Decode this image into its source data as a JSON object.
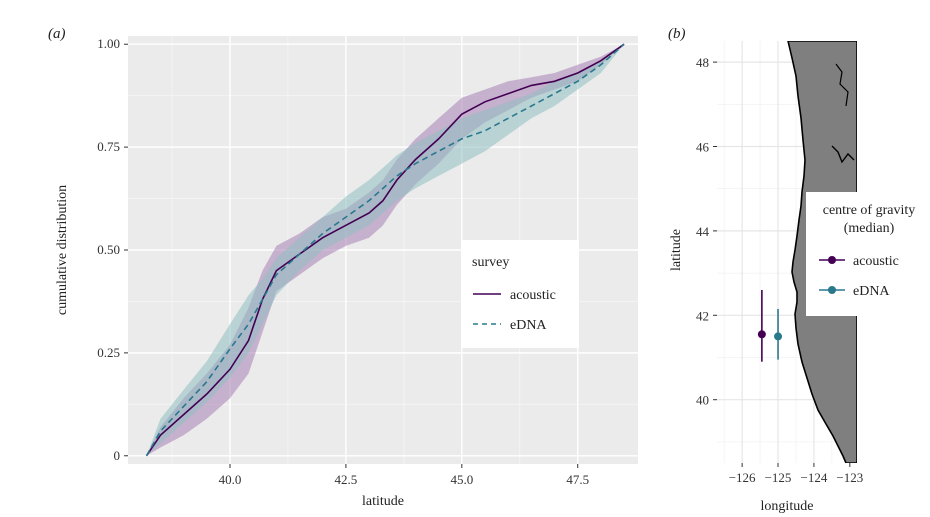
{
  "panel_a": {
    "label": "(a)",
    "xlabel": "latitude",
    "ylabel": "cumulative distribution",
    "xticks": [
      "40.0",
      "42.5",
      "45.0",
      "47.5"
    ],
    "yticks": [
      "0",
      "0.25",
      "0.50",
      "0.75",
      "1.00"
    ],
    "legend_title": "survey",
    "legend_items": [
      "acoustic",
      "eDNA"
    ]
  },
  "panel_b": {
    "label": "(b)",
    "xlabel": "longitude",
    "ylabel": "latitude",
    "xticks": [
      "−126",
      "−125",
      "−124",
      "−123"
    ],
    "yticks": [
      "40",
      "42",
      "44",
      "46",
      "48"
    ],
    "legend_title": "centre of gravity\n(median)",
    "legend_title_line1": "centre of gravity",
    "legend_title_line2": "(median)",
    "legend_items": [
      "acoustic",
      "eDNA"
    ]
  },
  "colors": {
    "acoustic": "#440154",
    "edna": "#2a788e",
    "acoustic_band": "#a67fb4",
    "edna_band": "#8fc0c3",
    "panel_bg": "#ebebeb",
    "land": "#7f7f7f"
  },
  "chart_data": [
    {
      "type": "line",
      "title": "",
      "xlabel": "latitude",
      "ylabel": "cumulative distribution",
      "xlim": [
        37.8,
        48.8
      ],
      "ylim": [
        -0.02,
        1.02
      ],
      "grid": true,
      "legend_placement": "center-right",
      "series": [
        {
          "name": "acoustic",
          "style": "solid",
          "x": [
            38.2,
            38.5,
            39.0,
            39.5,
            40.0,
            40.4,
            40.7,
            41.0,
            41.5,
            42.0,
            42.5,
            43.0,
            43.3,
            43.6,
            44.0,
            44.5,
            45.0,
            45.5,
            46.0,
            46.5,
            47.0,
            47.5,
            48.0,
            48.5
          ],
          "y": [
            0.0,
            0.05,
            0.1,
            0.15,
            0.21,
            0.28,
            0.38,
            0.45,
            0.49,
            0.53,
            0.56,
            0.59,
            0.62,
            0.67,
            0.72,
            0.77,
            0.83,
            0.86,
            0.88,
            0.9,
            0.91,
            0.93,
            0.96,
            1.0
          ],
          "lower": [
            0.0,
            0.02,
            0.05,
            0.09,
            0.14,
            0.2,
            0.3,
            0.4,
            0.44,
            0.48,
            0.51,
            0.53,
            0.56,
            0.61,
            0.66,
            0.71,
            0.77,
            0.81,
            0.84,
            0.87,
            0.89,
            0.91,
            0.95,
            1.0
          ],
          "upper": [
            0.0,
            0.07,
            0.14,
            0.2,
            0.27,
            0.36,
            0.45,
            0.51,
            0.54,
            0.58,
            0.6,
            0.64,
            0.67,
            0.72,
            0.77,
            0.82,
            0.87,
            0.89,
            0.91,
            0.92,
            0.93,
            0.95,
            0.97,
            1.0
          ]
        },
        {
          "name": "eDNA",
          "style": "dashed",
          "x": [
            38.2,
            38.5,
            39.0,
            39.5,
            40.0,
            40.4,
            40.7,
            41.0,
            41.5,
            42.0,
            42.5,
            43.0,
            43.3,
            43.6,
            44.0,
            44.5,
            45.0,
            45.5,
            46.0,
            46.5,
            47.0,
            47.5,
            48.0,
            48.5
          ],
          "y": [
            0.0,
            0.06,
            0.12,
            0.18,
            0.26,
            0.32,
            0.38,
            0.44,
            0.49,
            0.54,
            0.58,
            0.62,
            0.65,
            0.68,
            0.71,
            0.74,
            0.77,
            0.79,
            0.82,
            0.85,
            0.88,
            0.91,
            0.95,
            1.0
          ],
          "lower": [
            0.0,
            0.03,
            0.08,
            0.13,
            0.19,
            0.25,
            0.32,
            0.39,
            0.45,
            0.5,
            0.53,
            0.56,
            0.59,
            0.62,
            0.65,
            0.68,
            0.71,
            0.74,
            0.78,
            0.82,
            0.85,
            0.89,
            0.93,
            1.0
          ],
          "upper": [
            0.0,
            0.09,
            0.16,
            0.23,
            0.32,
            0.39,
            0.43,
            0.48,
            0.53,
            0.58,
            0.63,
            0.67,
            0.7,
            0.73,
            0.76,
            0.79,
            0.82,
            0.84,
            0.86,
            0.88,
            0.91,
            0.93,
            0.96,
            1.0
          ]
        }
      ]
    },
    {
      "type": "scatter",
      "title": "",
      "xlabel": "longitude",
      "ylabel": "latitude",
      "xlim": [
        -126.7,
        -122.8
      ],
      "ylim": [
        38.5,
        48.5
      ],
      "grid": true,
      "legend_placement": "right",
      "series": [
        {
          "name": "acoustic",
          "x": [
            -125.45
          ],
          "y": [
            41.55
          ],
          "ymin": [
            40.9
          ],
          "ymax": [
            42.6
          ]
        },
        {
          "name": "eDNA",
          "x": [
            -125.0
          ],
          "y": [
            41.5
          ],
          "ymin": [
            40.95
          ],
          "ymax": [
            42.15
          ]
        }
      ]
    }
  ]
}
